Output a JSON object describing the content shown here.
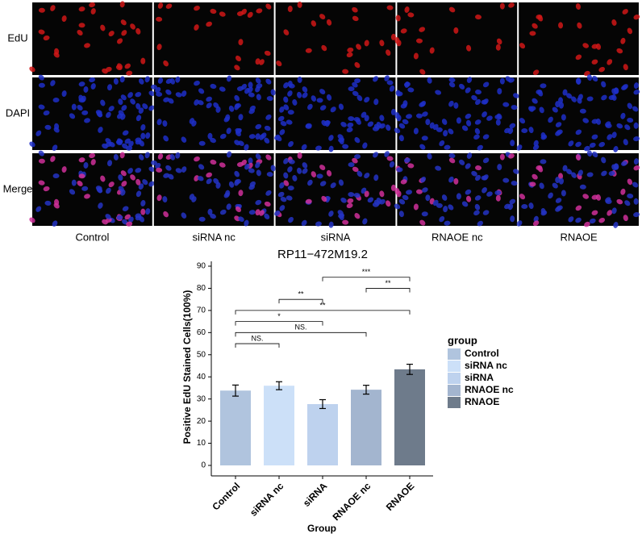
{
  "panel": {
    "row_labels": [
      "EdU",
      "DAPI",
      "Merge"
    ],
    "column_labels": [
      "Control",
      "siRNA nc",
      "siRNA",
      "RNAOE nc",
      "RNAOE"
    ]
  },
  "chart_data": {
    "type": "bar",
    "title": "RP11−472M19.2",
    "x_label": "Group",
    "y_label": "Positive EdU Stained Cells(100%)",
    "categories": [
      "Control",
      "siRNA nc",
      "siRNA",
      "RNAOE nc",
      "RNAOE"
    ],
    "values": [
      33.8,
      36.0,
      27.7,
      34.2,
      43.4
    ],
    "errors": [
      2.5,
      1.8,
      2.0,
      2.0,
      2.3
    ],
    "colors": [
      "#b0c4de",
      "#cce0f8",
      "#bed2ee",
      "#a3b5cf",
      "#6e7b8b"
    ],
    "ylim": [
      0,
      90
    ],
    "yticks": [
      0,
      10,
      20,
      30,
      40,
      50,
      60,
      70,
      80,
      90
    ],
    "legend": {
      "title": "group",
      "position": "right"
    },
    "brackets": [
      {
        "from": "Control",
        "to": "siRNA nc",
        "label": "NS.",
        "y": 55
      },
      {
        "from": "Control",
        "to": "RNAOE nc",
        "label": "NS.",
        "y": 60
      },
      {
        "from": "Control",
        "to": "siRNA",
        "label": "*",
        "y": 65
      },
      {
        "from": "Control",
        "to": "RNAOE",
        "label": "**",
        "y": 70
      },
      {
        "from": "siRNA nc",
        "to": "siRNA",
        "label": "**",
        "y": 75
      },
      {
        "from": "RNAOE nc",
        "to": "RNAOE",
        "label": "**",
        "y": 80
      },
      {
        "from": "siRNA",
        "to": "RNAOE",
        "label": "***",
        "y": 85
      }
    ]
  }
}
